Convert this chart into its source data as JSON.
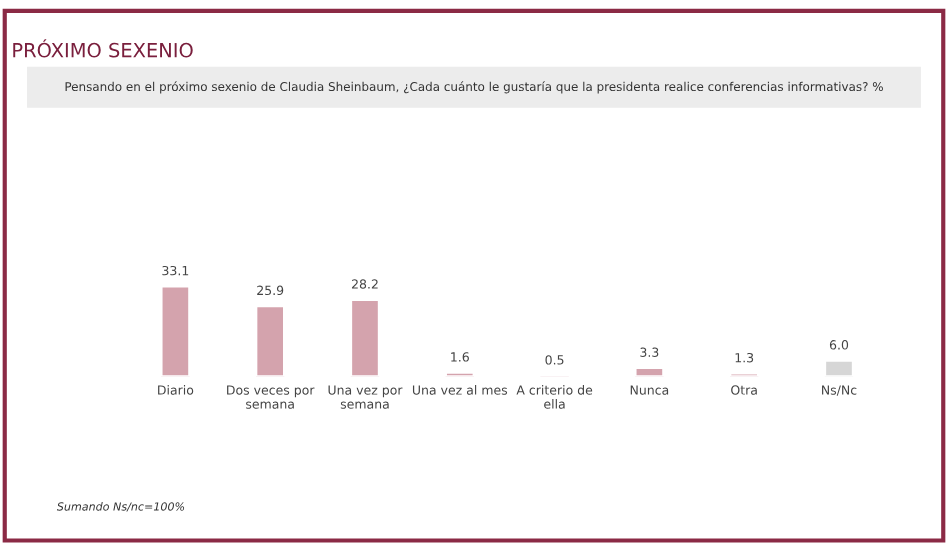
{
  "chart_data": {
    "type": "bar",
    "title": "PRÓXIMO SEXENIO",
    "subtitle": "Pensando en el próximo sexenio de Claudia Sheinbaum, ¿Cada cuánto le gustaría que la presidenta realice conferencias informativas? %",
    "categories": [
      "Diario",
      "Dos veces por semana",
      "Una vez por semana",
      "Una vez al mes",
      "A criterio de ella",
      "Nunca",
      "Otra",
      "Ns/Nc"
    ],
    "values": [
      33.1,
      25.9,
      28.2,
      1.6,
      0.5,
      3.3,
      1.3,
      6.0
    ],
    "value_labels": [
      "33.1",
      "25.9",
      "28.2",
      "1.6",
      "0.5",
      "3.3",
      "1.3",
      "6.0"
    ],
    "colors": [
      "#d4a3ad",
      "#d4a3ad",
      "#d4a3ad",
      "#d4a3ad",
      "#d4a3ad",
      "#d4a3ad",
      "#d4a3ad",
      "#d6d6d6"
    ],
    "annotations": [
      "Sumando Ns/nc=100%"
    ],
    "grid": false,
    "legend": false
  }
}
